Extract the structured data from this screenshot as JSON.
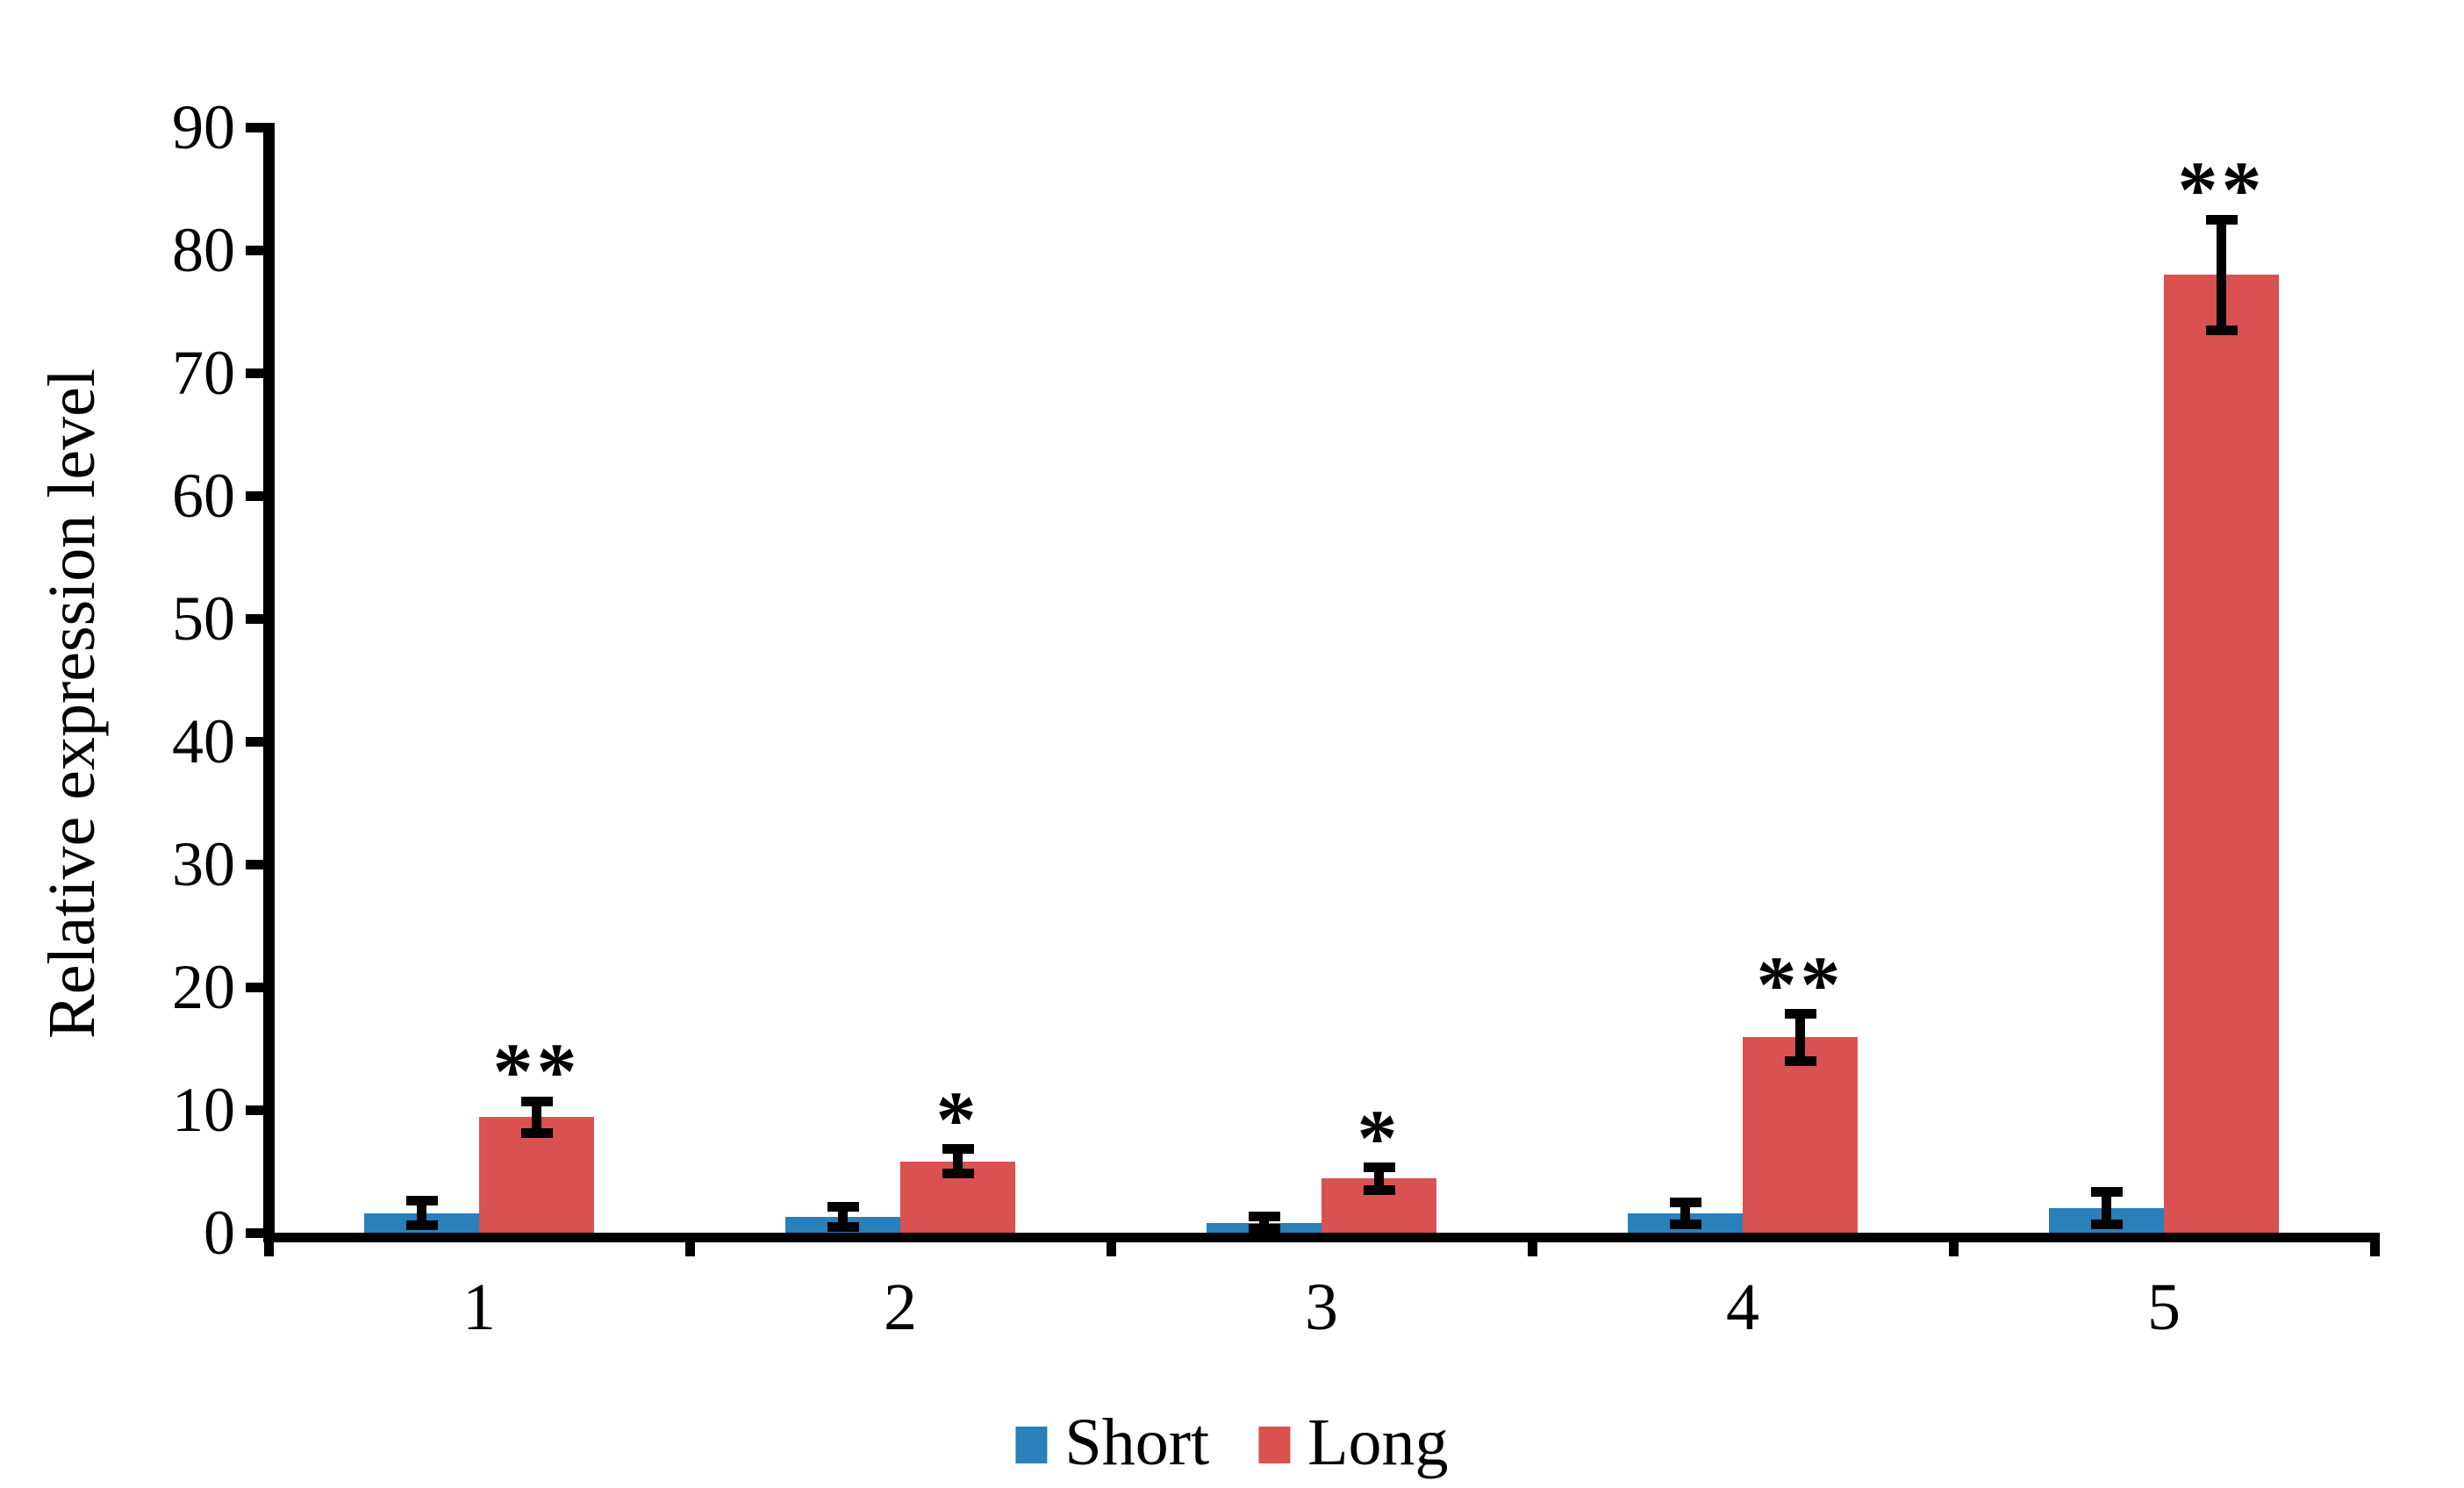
{
  "chart_data": {
    "type": "bar",
    "title": "",
    "xlabel": "",
    "ylabel": "Relative expression level",
    "categories": [
      "1",
      "2",
      "3",
      "4",
      "5"
    ],
    "series": [
      {
        "name": "Short",
        "color": "#2A80B9",
        "values": [
          1.6,
          1.3,
          0.8,
          1.6,
          2.0
        ],
        "errors": [
          1.0,
          0.8,
          0.5,
          0.9,
          1.3
        ]
      },
      {
        "name": "Long",
        "color": "#D95151",
        "values": [
          9.4,
          5.8,
          4.4,
          15.9,
          78.0
        ],
        "errors": [
          1.3,
          1.0,
          0.9,
          1.9,
          4.5
        ]
      }
    ],
    "significance": {
      "series": "Long",
      "labels": [
        "**",
        "*",
        "*",
        "**",
        "**"
      ]
    },
    "ylim": [
      0,
      90
    ],
    "yticks": [
      0,
      10,
      20,
      30,
      40,
      50,
      60,
      70,
      80,
      90
    ],
    "grid": false,
    "legend_position": "bottom",
    "error_bar_color": "#000000",
    "axis_color": "#000000"
  }
}
